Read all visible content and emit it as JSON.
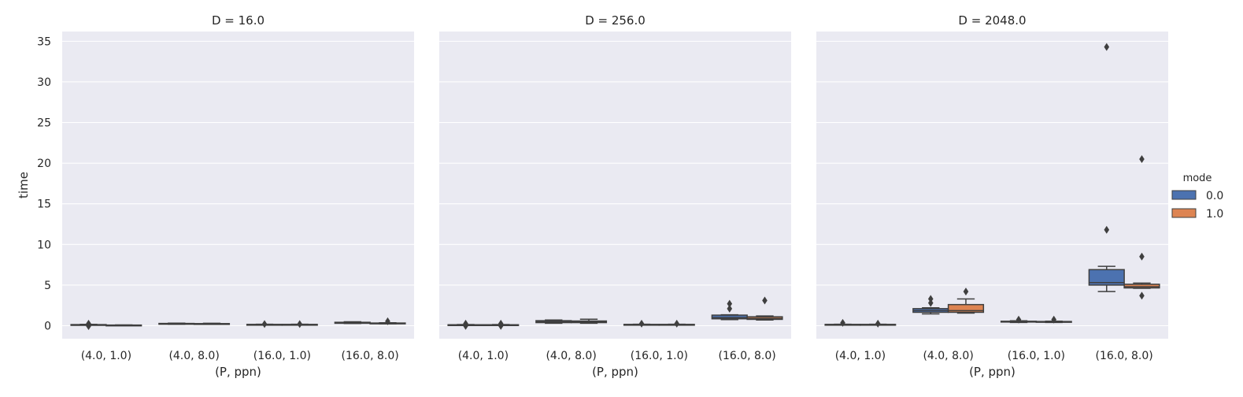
{
  "chart_data": {
    "type": "boxplot",
    "facet_variable": "D",
    "ylabel": "time",
    "xlabel": "(P, ppn)",
    "ylim": [
      -1.6,
      36.2
    ],
    "y_ticks": [
      0,
      5,
      10,
      15,
      20,
      25,
      30,
      35
    ],
    "grid": true,
    "categories": [
      "(4.0, 1.0)",
      "(4.0, 8.0)",
      "(16.0, 1.0)",
      "(16.0, 8.0)"
    ],
    "legend": {
      "title": "mode",
      "position": "right",
      "entries": [
        {
          "label": "0.0",
          "color": "#4c72b0"
        },
        {
          "label": "1.0",
          "color": "#dd8452"
        }
      ]
    },
    "facets": [
      {
        "title": "D = 16.0",
        "groups": [
          {
            "category": "(4.0, 1.0)",
            "mode": "0.0",
            "whislo": 0.08,
            "q1": 0.1,
            "med": 0.12,
            "q3": 0.14,
            "whishi": 0.17,
            "fliers": [
              0.25,
              -0.05
            ]
          },
          {
            "category": "(4.0, 1.0)",
            "mode": "1.0",
            "whislo": 0.02,
            "q1": 0.04,
            "med": 0.06,
            "q3": 0.08,
            "whishi": 0.1,
            "fliers": []
          },
          {
            "category": "(4.0, 8.0)",
            "mode": "0.0",
            "whislo": 0.18,
            "q1": 0.2,
            "med": 0.24,
            "q3": 0.28,
            "whishi": 0.32,
            "fliers": []
          },
          {
            "category": "(4.0, 8.0)",
            "mode": "1.0",
            "whislo": 0.18,
            "q1": 0.2,
            "med": 0.23,
            "q3": 0.26,
            "whishi": 0.3,
            "fliers": []
          },
          {
            "category": "(16.0, 1.0)",
            "mode": "0.0",
            "whislo": 0.1,
            "q1": 0.12,
            "med": 0.14,
            "q3": 0.16,
            "whishi": 0.18,
            "fliers": [
              0.2
            ]
          },
          {
            "category": "(16.0, 1.0)",
            "mode": "1.0",
            "whislo": 0.1,
            "q1": 0.12,
            "med": 0.14,
            "q3": 0.16,
            "whishi": 0.18,
            "fliers": [
              0.2
            ]
          },
          {
            "category": "(16.0, 8.0)",
            "mode": "0.0",
            "whislo": 0.28,
            "q1": 0.3,
            "med": 0.34,
            "q3": 0.42,
            "whishi": 0.48,
            "fliers": []
          },
          {
            "category": "(16.0, 8.0)",
            "mode": "1.0",
            "whislo": 0.24,
            "q1": 0.27,
            "med": 0.3,
            "q3": 0.33,
            "whishi": 0.36,
            "fliers": [
              0.55
            ]
          }
        ]
      },
      {
        "title": "D = 256.0",
        "groups": [
          {
            "category": "(4.0, 1.0)",
            "mode": "0.0",
            "whislo": 0.06,
            "q1": 0.08,
            "med": 0.1,
            "q3": 0.12,
            "whishi": 0.14,
            "fliers": [
              0.25,
              -0.02
            ]
          },
          {
            "category": "(4.0, 1.0)",
            "mode": "1.0",
            "whislo": 0.06,
            "q1": 0.08,
            "med": 0.1,
            "q3": 0.12,
            "whishi": 0.14,
            "fliers": [
              0.25,
              -0.02
            ]
          },
          {
            "category": "(4.0, 8.0)",
            "mode": "0.0",
            "whislo": 0.3,
            "q1": 0.38,
            "med": 0.5,
            "q3": 0.62,
            "whishi": 0.7,
            "fliers": []
          },
          {
            "category": "(4.0, 8.0)",
            "mode": "1.0",
            "whislo": 0.3,
            "q1": 0.38,
            "med": 0.48,
            "q3": 0.58,
            "whishi": 0.8,
            "fliers": []
          },
          {
            "category": "(16.0, 1.0)",
            "mode": "0.0",
            "whislo": 0.1,
            "q1": 0.12,
            "med": 0.14,
            "q3": 0.16,
            "whishi": 0.18,
            "fliers": [
              0.25
            ]
          },
          {
            "category": "(16.0, 1.0)",
            "mode": "1.0",
            "whislo": 0.1,
            "q1": 0.12,
            "med": 0.14,
            "q3": 0.16,
            "whishi": 0.18,
            "fliers": [
              0.25
            ]
          },
          {
            "category": "(16.0, 8.0)",
            "mode": "0.0",
            "whislo": 0.75,
            "q1": 0.85,
            "med": 1.0,
            "q3": 1.3,
            "whishi": 1.35,
            "fliers": [
              2.1,
              2.7
            ]
          },
          {
            "category": "(16.0, 8.0)",
            "mode": "1.0",
            "whislo": 0.7,
            "q1": 0.78,
            "med": 0.9,
            "q3": 1.1,
            "whishi": 1.2,
            "fliers": [
              3.1
            ]
          }
        ]
      },
      {
        "title": "D = 2048.0",
        "groups": [
          {
            "category": "(4.0, 1.0)",
            "mode": "0.0",
            "whislo": 0.1,
            "q1": 0.12,
            "med": 0.14,
            "q3": 0.16,
            "whishi": 0.18,
            "fliers": [
              0.35
            ]
          },
          {
            "category": "(4.0, 1.0)",
            "mode": "1.0",
            "whislo": 0.1,
            "q1": 0.12,
            "med": 0.14,
            "q3": 0.16,
            "whishi": 0.18,
            "fliers": [
              0.25
            ]
          },
          {
            "category": "(4.0, 8.0)",
            "mode": "0.0",
            "whislo": 1.45,
            "q1": 1.65,
            "med": 1.85,
            "q3": 2.1,
            "whishi": 2.2,
            "fliers": [
              2.8,
              3.3
            ]
          },
          {
            "category": "(4.0, 8.0)",
            "mode": "1.0",
            "whislo": 1.55,
            "q1": 1.65,
            "med": 1.85,
            "q3": 2.6,
            "whishi": 3.3,
            "fliers": [
              4.2
            ]
          },
          {
            "category": "(16.0, 1.0)",
            "mode": "0.0",
            "whislo": 0.4,
            "q1": 0.45,
            "med": 0.5,
            "q3": 0.55,
            "whishi": 0.6,
            "fliers": [
              0.75
            ]
          },
          {
            "category": "(16.0, 1.0)",
            "mode": "1.0",
            "whislo": 0.4,
            "q1": 0.44,
            "med": 0.48,
            "q3": 0.52,
            "whishi": 0.56,
            "fliers": [
              0.75
            ]
          },
          {
            "category": "(16.0, 8.0)",
            "mode": "0.0",
            "whislo": 4.2,
            "q1": 5.0,
            "med": 5.3,
            "q3": 6.9,
            "whishi": 7.3,
            "fliers": [
              11.8,
              34.3
            ]
          },
          {
            "category": "(16.0, 8.0)",
            "mode": "1.0",
            "whislo": 4.6,
            "q1": 4.65,
            "med": 4.8,
            "q3": 5.1,
            "whishi": 5.25,
            "fliers": [
              3.7,
              8.5,
              20.5
            ]
          }
        ]
      }
    ]
  }
}
